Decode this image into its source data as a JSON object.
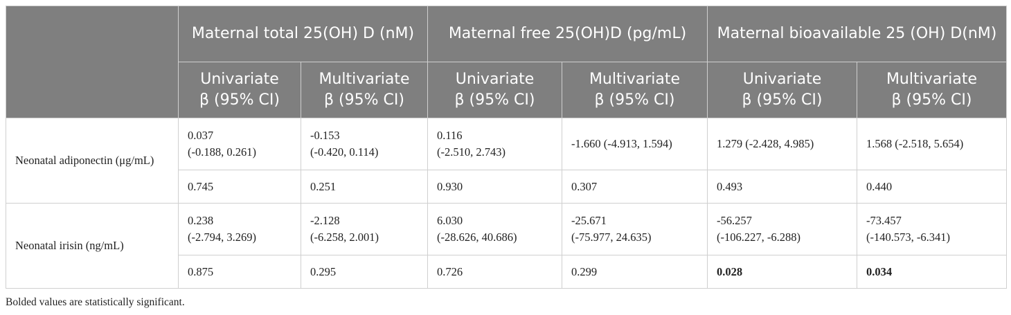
{
  "header": {
    "groups": [
      {
        "label": "Maternal total 25(OH) D (nM)"
      },
      {
        "label": "Maternal free 25(OH)D (pg/mL)"
      },
      {
        "label": "Maternal bioavailable 25 (OH) D(nM)"
      }
    ],
    "sub": {
      "univariate_line1": "Univariate",
      "multivariate_line1": "Multivariate",
      "beta_line2": "β (95% CI)"
    }
  },
  "rows": [
    {
      "label": "Neonatal adiponectin (μg/mL)",
      "estimates": [
        {
          "est": "0.037",
          "ci": "(-0.188, 0.261)"
        },
        {
          "est": "-0.153",
          "ci": "(-0.420, 0.114)"
        },
        {
          "est": "0.116",
          "ci": "(-2.510, 2.743)"
        },
        {
          "full": "-1.660 (-4.913, 1.594)"
        },
        {
          "full": "1.279 (-2.428, 4.985)"
        },
        {
          "full": "1.568 (-2.518, 5.654)"
        }
      ],
      "p_values": [
        "0.745",
        "0.251",
        "0.930",
        "0.307",
        "0.493",
        "0.440"
      ]
    },
    {
      "label": "Neonatal irisin (ng/mL)",
      "estimates": [
        {
          "est": "0.238",
          "ci": "(-2.794, 3.269)"
        },
        {
          "est": "-2.128",
          "ci": "(-6.258, 2.001)"
        },
        {
          "est": "6.030",
          "ci": "(-28.626, 40.686)"
        },
        {
          "est": "-25.671",
          "ci": "(-75.977, 24.635)"
        },
        {
          "est": "-56.257",
          "ci": "(-106.227, -6.288)"
        },
        {
          "est": "-73.457",
          "ci": "(-140.573, -6.341)"
        }
      ],
      "p_values": [
        "0.875",
        "0.295",
        "0.726",
        "0.299",
        "0.028",
        "0.034"
      ]
    }
  ],
  "footnote": "Bolded values are statistically significant."
}
